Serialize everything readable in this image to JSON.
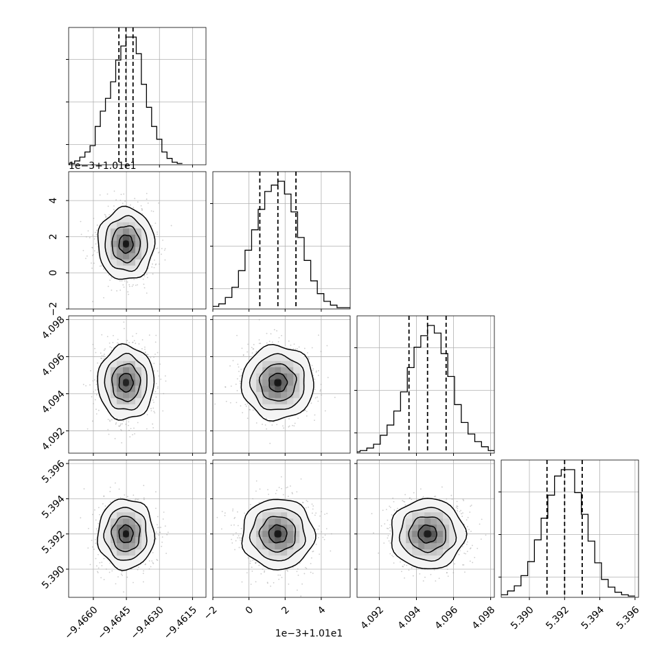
{
  "chart_data": {
    "type": "corner",
    "grid": true,
    "parameters": [
      {
        "index": 0,
        "range": [
          -9.46712,
          -9.46089
        ],
        "ticks": [
          -9.466,
          -9.4645,
          -9.463,
          -9.4615
        ],
        "tick_labels": [
          "−9.4660",
          "−9.4645",
          "−9.4630",
          "−9.4615"
        ],
        "offset_label": "",
        "median": -9.46452,
        "q16": -9.46484,
        "q84": -9.4642,
        "sigma": 0.00064
      },
      {
        "index": 1,
        "range": [
          -2,
          5.6
        ],
        "ticks": [
          -2,
          0,
          2,
          4
        ],
        "tick_labels": [
          "−2",
          "0",
          "2",
          "4"
        ],
        "offset_label": "1e−3+1.01e1",
        "median": 1.6,
        "q16": 0.6,
        "q84": 2.6,
        "sigma": 1.0
      },
      {
        "index": 2,
        "range": [
          4.0908,
          4.0982
        ],
        "ticks": [
          4.092,
          4.094,
          4.096,
          4.098
        ],
        "tick_labels": [
          "4.092",
          "4.094",
          "4.096",
          "4.098"
        ],
        "offset_label": "",
        "median": 4.0946,
        "q16": 4.0936,
        "q84": 4.0956,
        "sigma": 0.001
      },
      {
        "index": 3,
        "range": [
          5.3884,
          5.3962
        ],
        "ticks": [
          5.39,
          5.392,
          5.394,
          5.396
        ],
        "tick_labels": [
          "5.390",
          "5.392",
          "5.394",
          "5.396"
        ],
        "offset_label": "",
        "median": 5.392,
        "q16": 5.391,
        "q84": 5.393,
        "sigma": 0.001
      }
    ],
    "histograms": [
      {
        "param": 0,
        "counts": [
          0.01,
          0.03,
          0.06,
          0.1,
          0.15,
          0.3,
          0.42,
          0.52,
          0.65,
          0.82,
          0.93,
          1.0,
          1.0,
          0.87,
          0.63,
          0.45,
          0.3,
          0.2,
          0.1,
          0.05,
          0.02,
          0.01
        ]
      },
      {
        "param": 1,
        "counts": [
          0.01,
          0.02,
          0.04,
          0.09,
          0.17,
          0.3,
          0.46,
          0.62,
          0.78,
          0.92,
          0.97,
          1.0,
          0.9,
          0.76,
          0.56,
          0.38,
          0.22,
          0.12,
          0.06,
          0.03,
          0.01,
          0.01
        ]
      },
      {
        "param": 2,
        "counts": [
          0.01,
          0.02,
          0.04,
          0.07,
          0.14,
          0.22,
          0.33,
          0.48,
          0.67,
          0.83,
          0.92,
          1.0,
          0.94,
          0.78,
          0.6,
          0.38,
          0.24,
          0.15,
          0.09,
          0.05,
          0.02,
          0.01
        ]
      },
      {
        "param": 3,
        "counts": [
          0.01,
          0.02,
          0.05,
          0.09,
          0.17,
          0.28,
          0.45,
          0.62,
          0.8,
          0.95,
          1.0,
          1.0,
          0.82,
          0.65,
          0.44,
          0.27,
          0.14,
          0.08,
          0.04,
          0.02,
          0.01
        ]
      }
    ],
    "scatter_panels": [
      {
        "x_param": 0,
        "y_param": 1
      },
      {
        "x_param": 0,
        "y_param": 2
      },
      {
        "x_param": 1,
        "y_param": 2
      },
      {
        "x_param": 0,
        "y_param": 3
      },
      {
        "x_param": 1,
        "y_param": 3
      },
      {
        "x_param": 2,
        "y_param": 3
      }
    ],
    "contour_levels_sigma": [
      0.5,
      1.0,
      1.5,
      2.0
    ]
  },
  "colors": {
    "line": "#000000",
    "grid": "#b0b0b0",
    "scatter": "#9a9a9a",
    "density": [
      "#f2f2f2",
      "#d0d0d0",
      "#a8a8a8",
      "#7c7c7c",
      "#505050",
      "#282828",
      "#000000"
    ]
  }
}
